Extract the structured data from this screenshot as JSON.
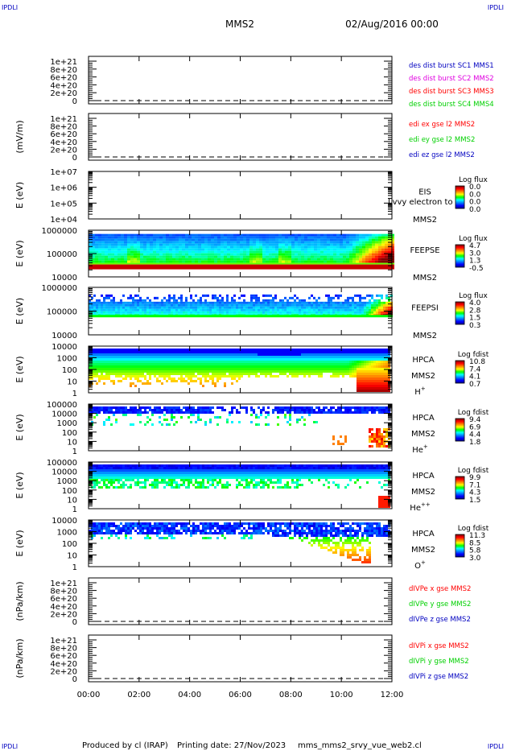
{
  "corner_tag": "IPDLI",
  "header": {
    "spacecraft": "MMS2",
    "date": "02/Aug/2016 00:00"
  },
  "footer": {
    "producer": "Produced by cl (IRAP)",
    "printing_date": "Printing date: 27/Nov/2023",
    "script_name": "mms_mms2_srvy_vue_web2.cl"
  },
  "colors": {
    "red": "#ff0000",
    "magenta": "#e000e0",
    "green": "#00d000",
    "blue": "#0000c0",
    "dash": "#000000"
  },
  "chart_data": {
    "type": "heatmap",
    "time_range": [
      "00:00",
      "12:00"
    ],
    "time_axis_hours": [
      0,
      2,
      4,
      6,
      8,
      10,
      12
    ],
    "time_tick_labels": [
      "00:00",
      "02:00",
      "04:00",
      "06:00",
      "08:00",
      "10:00",
      "12:00"
    ],
    "panels": [
      {
        "kind": "lines",
        "ylabel": "",
        "yticks": [
          "0",
          "2e+20",
          "4e+20",
          "6e+20",
          "8e+20",
          "1e+21"
        ],
        "legend": [
          {
            "text": "des dist burst SC1 MMS1",
            "color": "#0000c0"
          },
          {
            "text": "des dist burst SC2 MMS2",
            "color": "#e000e0"
          },
          {
            "text": "des dist burst SC3 MMS3",
            "color": "#ff0000"
          },
          {
            "text": "des dist burst SC4 MMS4",
            "color": "#00d000"
          }
        ]
      },
      {
        "kind": "lines",
        "ylabel": "(mV/m)",
        "yticks": [
          "0",
          "2e+20",
          "4e+20",
          "6e+20",
          "8e+20",
          "1e+21"
        ],
        "legend": [
          {
            "text": "edi ex gse l2 MMS2",
            "color": "#ff0000"
          },
          {
            "text": "edi ey gse l2 MMS2",
            "color": "#00d000"
          },
          {
            "text": "edi ez gse l2 MMS2",
            "color": "#0000c0"
          }
        ]
      },
      {
        "kind": "spec",
        "ylabel": "E (eV)",
        "fill": "none",
        "yticks": [
          "1e+04",
          "1e+05",
          "1e+06",
          "1e+07"
        ],
        "species": [
          "EIS",
          "MMS2"
        ],
        "overlay_text": "Lvvy electron to",
        "cbar_title": "Log flux",
        "cbar_ticks": [
          "0.0",
          "0.0",
          "0.0",
          "0.0"
        ]
      },
      {
        "kind": "spec",
        "ylabel": "E (eV)",
        "fill": "feepse",
        "yticks": [
          "10000",
          "100000",
          "1000000"
        ],
        "species": [
          "FEEPSE",
          "MMS2"
        ],
        "cbar_title": "Log flux",
        "cbar_ticks": [
          "4.7",
          "3.0",
          "1.3",
          "-0.5"
        ]
      },
      {
        "kind": "spec",
        "ylabel": "E (eV)",
        "fill": "feepsi",
        "yticks": [
          "10000",
          "100000",
          "1000000"
        ],
        "species": [
          "FEEPSI",
          "MMS2"
        ],
        "cbar_title": "Log flux",
        "cbar_ticks": [
          "4.0",
          "2.8",
          "1.5",
          "0.3"
        ]
      },
      {
        "kind": "spec",
        "ylabel": "E (eV)",
        "fill": "hpca_h",
        "yticks": [
          "1",
          "10",
          "100",
          "1000",
          "10000"
        ],
        "species": [
          "HPCA",
          "MMS2",
          "H+"
        ],
        "cbar_title": "Log fdist",
        "cbar_ticks": [
          "10.8",
          "7.4",
          "4.1",
          "0.7"
        ]
      },
      {
        "kind": "spec",
        "ylabel": "E (eV)",
        "fill": "hpca_he",
        "yticks": [
          "1",
          "10",
          "100",
          "1000",
          "10000",
          "100000"
        ],
        "species": [
          "HPCA",
          "MMS2",
          "He+"
        ],
        "cbar_title": "Log fdist",
        "cbar_ticks": [
          "9.4",
          "6.9",
          "4.4",
          "1.8"
        ]
      },
      {
        "kind": "spec",
        "ylabel": "E (eV)",
        "fill": "hpca_hepp",
        "yticks": [
          "1",
          "10",
          "100",
          "1000",
          "10000",
          "100000"
        ],
        "species": [
          "HPCA",
          "MMS2",
          "He++"
        ],
        "cbar_title": "Log fdist",
        "cbar_ticks": [
          "9.9",
          "7.1",
          "4.3",
          "1.5"
        ]
      },
      {
        "kind": "spec",
        "ylabel": "E (eV)",
        "fill": "hpca_o",
        "yticks": [
          "1",
          "10",
          "100",
          "1000",
          "10000"
        ],
        "species": [
          "HPCA",
          "MMS2",
          "O+"
        ],
        "cbar_title": "Log fdist",
        "cbar_ticks": [
          "11.3",
          "8.5",
          "5.8",
          "3.0"
        ]
      },
      {
        "kind": "lines",
        "ylabel": "(nPa/km)",
        "yticks": [
          "0",
          "2e+20",
          "4e+20",
          "6e+20",
          "8e+20",
          "1e+21"
        ],
        "legend": [
          {
            "text": "dIVPe x gse MMS2",
            "color": "#ff0000"
          },
          {
            "text": "dIVPe y gse MMS2",
            "color": "#00d000"
          },
          {
            "text": "dIVPe z gse MMS2",
            "color": "#0000c0"
          }
        ]
      },
      {
        "kind": "lines",
        "ylabel": "(nPa/km)",
        "yticks": [
          "0",
          "2e+20",
          "4e+20",
          "6e+20",
          "8e+20",
          "1e+21"
        ],
        "legend": [
          {
            "text": "dIVPi x gse MMS2",
            "color": "#ff0000"
          },
          {
            "text": "dIVPi y gse MMS2",
            "color": "#00d000"
          },
          {
            "text": "dIVPi z gse MMS2",
            "color": "#0000c0"
          }
        ]
      }
    ]
  }
}
